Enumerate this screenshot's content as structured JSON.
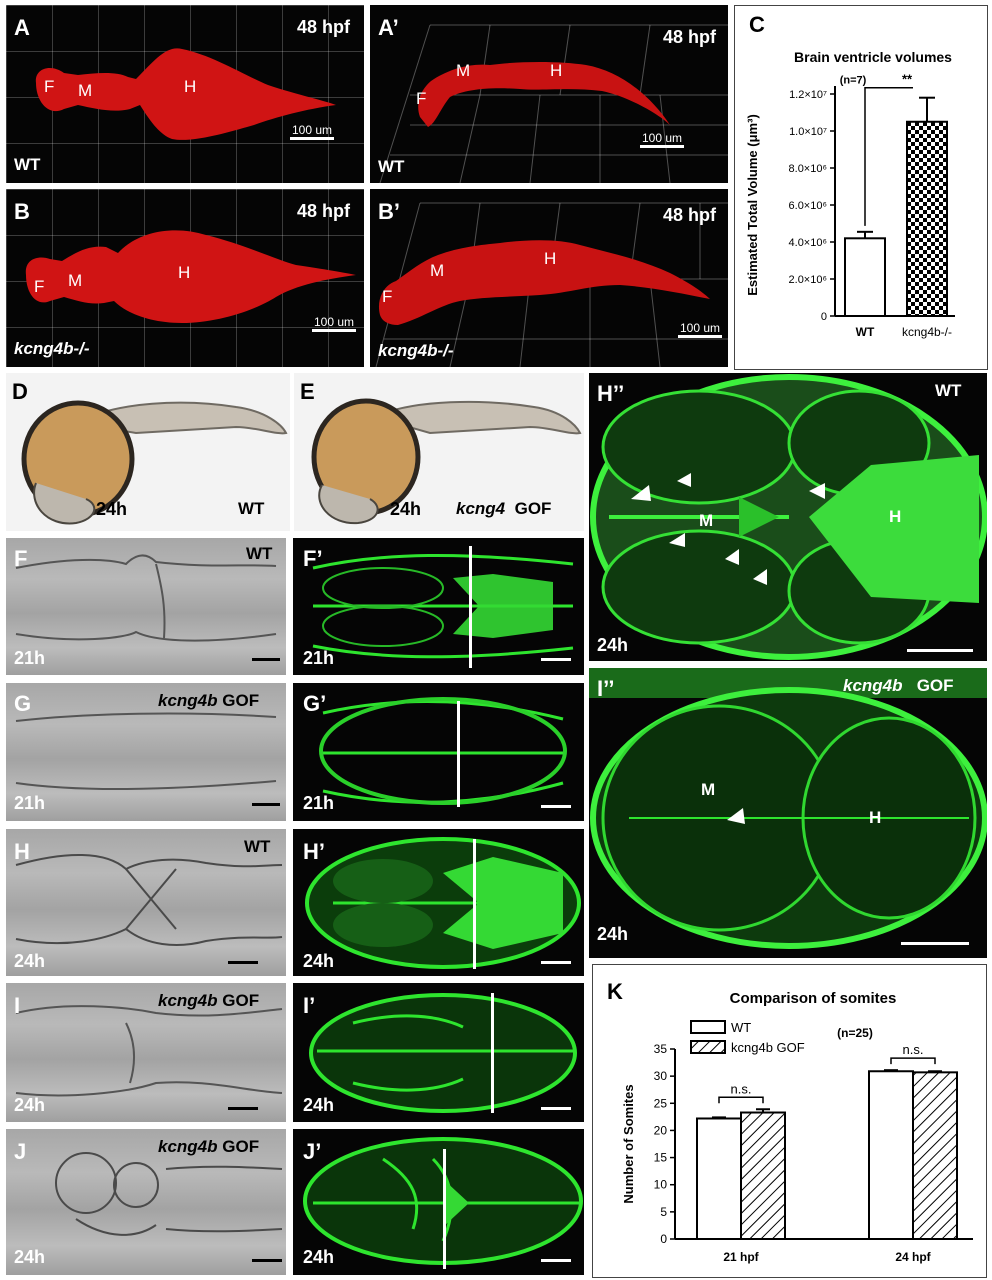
{
  "panels": {
    "A": {
      "label": "A",
      "time": "48 hpf",
      "genotype": "WT",
      "scale": "100 um",
      "regions": [
        "F",
        "M",
        "H"
      ]
    },
    "A2": {
      "label": "A’",
      "time": "48 hpf",
      "genotype": "WT",
      "scale": "100 um",
      "regions": [
        "F",
        "M",
        "H"
      ]
    },
    "B": {
      "label": "B",
      "time": "48 hpf",
      "genotype": "kcng4b-/-",
      "scale": "100 um",
      "regions": [
        "F",
        "M",
        "H"
      ]
    },
    "B2": {
      "label": "B’",
      "time": "48 hpf",
      "genotype": "kcng4b-/-",
      "scale": "100 um",
      "regions": [
        "F",
        "M",
        "H"
      ]
    },
    "D": {
      "label": "D",
      "time": "24h",
      "condition": "WT"
    },
    "E": {
      "label": "E",
      "time": "24h",
      "gene": "kcng4",
      "condition": "GOF"
    },
    "F": {
      "label": "F",
      "time": "21h",
      "condition": "WT"
    },
    "F2": {
      "label": "F’",
      "time": "21h"
    },
    "G": {
      "label": "G",
      "time": "21h",
      "gene": "kcng4b",
      "condition": "GOF"
    },
    "G2": {
      "label": "G’",
      "time": "21h"
    },
    "H": {
      "label": "H",
      "time": "24h",
      "condition": "WT"
    },
    "H2": {
      "label": "H’",
      "time": "24h"
    },
    "I": {
      "label": "I",
      "time": "24h",
      "gene": "kcng4b",
      "condition": "GOF"
    },
    "I2": {
      "label": "I’",
      "time": "24h"
    },
    "J": {
      "label": "J",
      "time": "24h",
      "gene": "kcng4b",
      "condition": "GOF"
    },
    "J2": {
      "label": "J’",
      "time": "24h"
    },
    "H3": {
      "label": "H’’",
      "time": "24h",
      "condition": "WT",
      "regions": [
        "M",
        "H"
      ]
    },
    "I3": {
      "label": "I’’",
      "time": "24h",
      "gene": "kcng4b",
      "condition": "GOF",
      "regions": [
        "M",
        "H"
      ]
    }
  },
  "charts": {
    "C": {
      "label": "C",
      "n_note": "(n=7)",
      "significance": "**"
    },
    "K": {
      "label": "K",
      "n_note": "(n=25)",
      "significance": [
        "n.s.",
        "n.s."
      ]
    }
  },
  "colors": {
    "surface_red": "#d81414",
    "gfp_green": "#2ee52e",
    "yolk": "#c99a5b"
  },
  "chart_data": [
    {
      "type": "bar",
      "title": "Brain ventricle volumes",
      "ylabel": "Estimated Total Volume (μm³)",
      "xlabel": "",
      "categories": [
        "WT",
        "kcng4b-/-"
      ],
      "values": [
        4200000,
        10500000
      ],
      "errors": [
        350000,
        1300000
      ],
      "ylim": [
        0,
        12000000
      ],
      "yticks": [
        0,
        2000000,
        4000000,
        6000000,
        8000000,
        10000000,
        12000000
      ],
      "ytick_labels": [
        "0",
        "2.0×10⁶",
        "4.0×10⁶",
        "6.0×10⁶",
        "8.0×10⁶",
        "1.0×10⁷",
        "1.2×10⁷"
      ],
      "patterns": [
        "open",
        "checkered"
      ]
    },
    {
      "type": "bar",
      "title": "Comparison of somites",
      "ylabel": "Number of Somites",
      "xlabel": "",
      "categories": [
        "21 hpf",
        "24 hpf"
      ],
      "series": [
        {
          "name": "WT",
          "values": [
            22.2,
            30.9
          ],
          "errors": [
            0.2,
            0.2
          ],
          "pattern": "open"
        },
        {
          "name": "kcng4b GOF",
          "values": [
            23.3,
            30.7
          ],
          "errors": [
            0.6,
            0.2
          ],
          "pattern": "hatched"
        }
      ],
      "ylim": [
        0,
        35
      ],
      "yticks": [
        0,
        5,
        10,
        15,
        20,
        25,
        30,
        35
      ],
      "legend": "top-left"
    }
  ]
}
